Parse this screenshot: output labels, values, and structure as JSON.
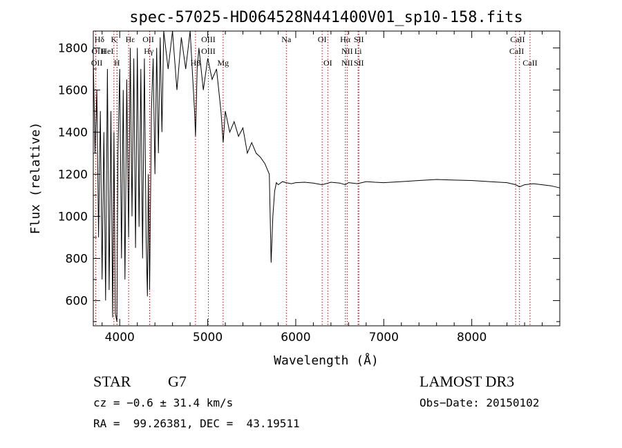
{
  "chart_data": {
    "type": "line",
    "title": "spec-57025-HD064528N441400V01_sp10-158.fits",
    "xlabel": "Wavelength (Å)",
    "ylabel": "Flux (relative)",
    "xlim": [
      3700,
      9000
    ],
    "ylim": [
      480,
      1880
    ],
    "xticks": [
      4000,
      5000,
      6000,
      7000,
      8000
    ],
    "yticks": [
      600,
      800,
      1000,
      1200,
      1400,
      1600,
      1800
    ],
    "grid": false,
    "legend": "none",
    "series": [
      {
        "color": "#000000",
        "x": [
          3700,
          3720,
          3740,
          3760,
          3780,
          3800,
          3820,
          3840,
          3860,
          3880,
          3900,
          3920,
          3935,
          3950,
          3968,
          3980,
          4000,
          4020,
          4040,
          4060,
          4080,
          4101,
          4120,
          4140,
          4160,
          4180,
          4200,
          4220,
          4240,
          4260,
          4280,
          4300,
          4315,
          4325,
          4340,
          4360,
          4380,
          4400,
          4420,
          4440,
          4460,
          4480,
          4500,
          4550,
          4600,
          4650,
          4700,
          4750,
          4800,
          4850,
          4861,
          4880,
          4900,
          4950,
          5000,
          5050,
          5100,
          5150,
          5175,
          5200,
          5250,
          5300,
          5350,
          5400,
          5450,
          5500,
          5550,
          5600,
          5650,
          5700,
          5720,
          5740,
          5760,
          5780,
          5800,
          5850,
          5890,
          5950,
          6000,
          6100,
          6200,
          6300,
          6400,
          6500,
          6563,
          6600,
          6700,
          6800,
          6900,
          7000,
          7200,
          7400,
          7600,
          7800,
          8000,
          8200,
          8400,
          8500,
          8542,
          8600,
          8700,
          8800,
          8900,
          9000
        ],
        "y": [
          1750,
          1300,
          1600,
          900,
          1500,
          700,
          1400,
          600,
          1700,
          650,
          1500,
          520,
          1400,
          540,
          500,
          1300,
          1700,
          800,
          1600,
          700,
          1650,
          900,
          1800,
          1000,
          1750,
          850,
          1800,
          950,
          1700,
          800,
          1750,
          900,
          620,
          1200,
          650,
          1500,
          1750,
          1200,
          1800,
          1300,
          1850,
          1400,
          1880,
          1700,
          1880,
          1600,
          1850,
          1700,
          1880,
          1500,
          1380,
          1700,
          1800,
          1600,
          1750,
          1650,
          1700,
          1500,
          1350,
          1500,
          1400,
          1450,
          1380,
          1420,
          1300,
          1350,
          1300,
          1280,
          1250,
          1200,
          780,
          1000,
          1120,
          1160,
          1150,
          1165,
          1160,
          1155,
          1160,
          1162,
          1158,
          1150,
          1162,
          1158,
          1150,
          1160,
          1155,
          1165,
          1162,
          1160,
          1165,
          1170,
          1175,
          1172,
          1170,
          1165,
          1160,
          1150,
          1140,
          1150,
          1155,
          1150,
          1145,
          1135
        ]
      }
    ],
    "lines": [
      {
        "name": "Hδ",
        "x": 4101
      },
      {
        "name": "K",
        "x": 3934
      },
      {
        "name": "H",
        "x": 3969
      },
      {
        "name": "Hε",
        "x": 3970
      },
      {
        "name": "OII",
        "x": 3727
      },
      {
        "name": "Hγ",
        "x": 4340
      },
      {
        "name": "Hβ",
        "x": 4861
      },
      {
        "name": "OIII",
        "x": 5007
      },
      {
        "name": "Mg",
        "x": 5175
      },
      {
        "name": "Na",
        "x": 5893
      },
      {
        "name": "OI",
        "x": 6300
      },
      {
        "name": "OI",
        "x": 6364
      },
      {
        "name": "Hα",
        "x": 6563
      },
      {
        "name": "NII",
        "x": 6584
      },
      {
        "name": "SII",
        "x": 6717
      },
      {
        "name": "Li",
        "x": 6708
      },
      {
        "name": "CaII",
        "x": 8498
      },
      {
        "name": "CaII",
        "x": 8542
      },
      {
        "name": "CaII",
        "x": 8662
      }
    ],
    "line_labels_row1": [
      "Hδ",
      "K",
      "Hε",
      "OII",
      "OIII",
      "Na",
      "OI",
      "Hα",
      "SII",
      "CaII"
    ],
    "line_labels_row2": [
      "OIII",
      "HeI",
      "Hγ",
      "OIII",
      "NII",
      "Li",
      "CaII"
    ],
    "line_labels_row3": [
      "OII",
      "H",
      "Hβ",
      "Mg",
      "OI",
      "NII",
      "SII",
      "CaII"
    ]
  },
  "info": {
    "class_label": "STAR",
    "subclass": "G7",
    "survey": "LAMOST DR3",
    "cz": "cz = −0.6 ± 31.4 km/s",
    "obs_date": "Obs−Date: 20150102",
    "coords": "RA =  99.26381, DEC =  43.19511"
  }
}
